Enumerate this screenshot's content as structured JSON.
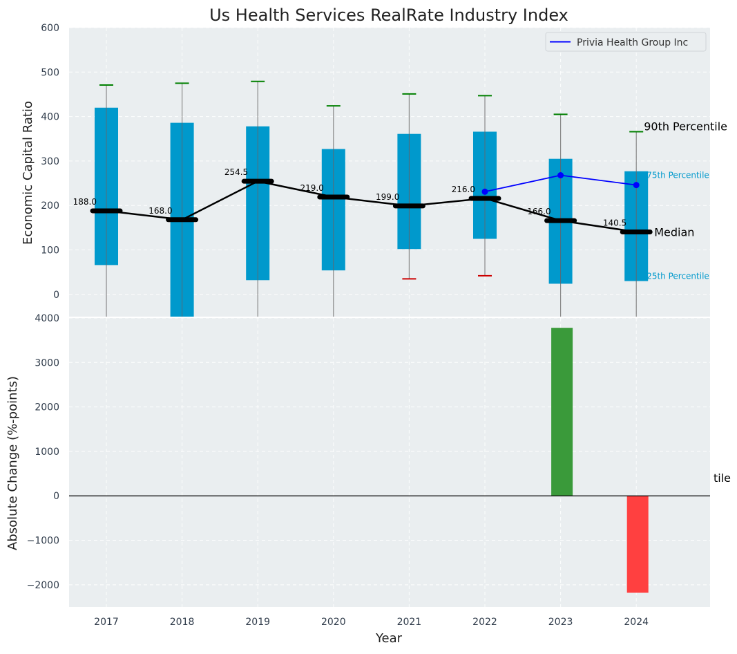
{
  "chart_data": [
    {
      "type": "box",
      "title": "Us Health Services RealRate Industry Index",
      "xlabel": "",
      "ylabel": "Economic Capital Ratio",
      "ylim": [
        -50,
        600
      ],
      "yticks": [
        0,
        100,
        200,
        300,
        400,
        500,
        600
      ],
      "categories": [
        "2017",
        "2018",
        "2019",
        "2020",
        "2021",
        "2022",
        "2023",
        "2024"
      ],
      "boxes": [
        {
          "year": "2017",
          "p10": -50,
          "p25": 66,
          "median": 188.0,
          "p75": 420,
          "p90": 471,
          "p90_color": "#008000",
          "p10_color": null
        },
        {
          "year": "2018",
          "p10": -50,
          "p25": -50,
          "median": 168.0,
          "p75": 386,
          "p90": 475,
          "p90_color": "#008000",
          "p10_color": null
        },
        {
          "year": "2019",
          "p10": -50,
          "p25": 32,
          "median": 254.5,
          "p75": 378,
          "p90": 479,
          "p90_color": "#008000",
          "p10_color": null
        },
        {
          "year": "2020",
          "p10": -50,
          "p25": 54,
          "median": 219.0,
          "p75": 327,
          "p90": 424,
          "p90_color": "#008000",
          "p10_color": null
        },
        {
          "year": "2021",
          "p10": 35,
          "p25": 102,
          "median": 199.0,
          "p75": 361,
          "p90": 451,
          "p90_color": "#008000",
          "p10_color": "#cc0000"
        },
        {
          "year": "2022",
          "p10": 42,
          "p25": 125,
          "median": 216.0,
          "p75": 366,
          "p90": 447,
          "p90_color": "#008000",
          "p10_color": "#cc0000"
        },
        {
          "year": "2023",
          "p10": -50,
          "p25": 24,
          "median": 166.0,
          "p75": 305,
          "p90": 405,
          "p90_color": "#008000",
          "p10_color": null
        },
        {
          "year": "2024",
          "p10": -50,
          "p25": 30,
          "median": 140.5,
          "p75": 277,
          "p90": 366,
          "p90_color": "#008000",
          "p10_color": null
        }
      ],
      "median_labels": [
        "188.0",
        "168.0",
        "254.5",
        "219.0",
        "199.0",
        "216.0",
        "166.0",
        "140.5"
      ],
      "series": [
        {
          "name": "Privia Health Group Inc",
          "years": [
            "2022",
            "2023",
            "2024"
          ],
          "values": [
            231,
            268,
            246
          ],
          "color": "#0000ff"
        }
      ],
      "annotations": {
        "p90": "90th Percentile",
        "p75": "75th Percentile",
        "median": "Median",
        "p25": "25th Percentile"
      },
      "legend": "top-right",
      "box_color": "#0099cc",
      "median_color": "#000000"
    },
    {
      "type": "bar",
      "title": "",
      "xlabel": "Year",
      "ylabel": "Absolute Change (%-points)",
      "ylim": [
        -2500,
        4000
      ],
      "yticks": [
        -2000,
        -1000,
        0,
        1000,
        2000,
        3000,
        4000
      ],
      "ytick_labels": [
        "−2000",
        "−1000",
        "0",
        "1000",
        "2000",
        "3000",
        "4000"
      ],
      "categories": [
        "2017",
        "2018",
        "2019",
        "2020",
        "2021",
        "2022",
        "2023",
        "2024"
      ],
      "values": [
        null,
        null,
        null,
        null,
        null,
        null,
        3780,
        -2180
      ],
      "positive_color": "#3a9a3a",
      "negative_color": "#ff4040",
      "stray_label": "tile"
    }
  ]
}
